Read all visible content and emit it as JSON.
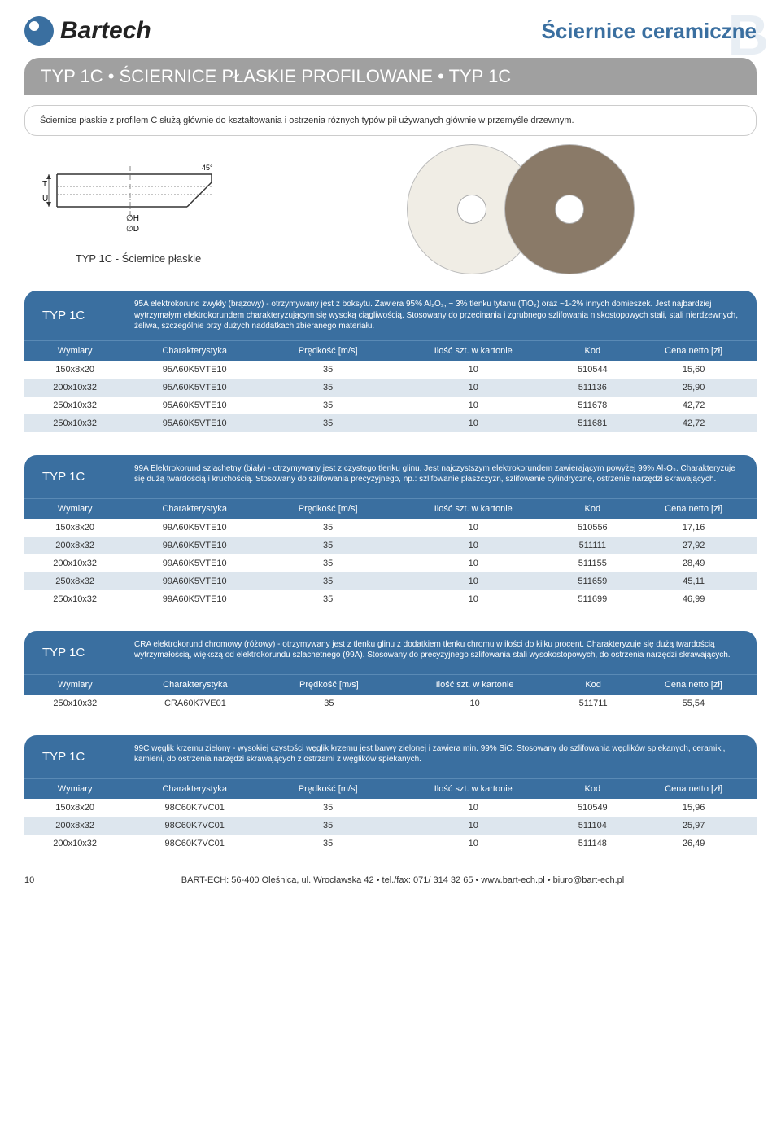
{
  "header": {
    "logo_text": "Bartech",
    "title": "Ściernice ceramiczne"
  },
  "title_bar": "TYP 1C • ŚCIERNICE PŁASKIE PROFILOWANE • TYP 1C",
  "intro": "Ściernice płaskie z profilem C służą głównie do kształtowania i ostrzenia różnych typów pił używanych głównie w przemyśle drzewnym.",
  "diagram": {
    "labels": {
      "T": "T",
      "U": "U",
      "H": "∅H",
      "D": "∅D",
      "angle": "45°"
    },
    "caption": "TYP 1C - Ściernice płaskie"
  },
  "columns": [
    "Wymiary",
    "Charakterystyka",
    "Prędkość [m/s]",
    "Ilość szt. w kartonie",
    "Kod",
    "Cena netto [zł]"
  ],
  "sections": [
    {
      "type": "TYP 1C",
      "desc": "95A elektrokorund zwykły (brązowy) - otrzymywany jest z boksytu. Zawiera 95% Al₂O₃, ~ 3% tlenku tytanu (TiO₂) oraz ~1-2% innych domieszek. Jest najbardziej wytrzymałym elektrokorundem charakteryzującym się wysoką ciągliwością. Stosowany do przecinania i zgrubnego szlifowania niskostopowych stali, stali nierdzewnych, żeliwa, szczególnie przy dużych naddatkach zbieranego materiału.",
      "rows": [
        [
          "150x8x20",
          "95A60K5VTE10",
          "35",
          "10",
          "510544",
          "15,60"
        ],
        [
          "200x10x32",
          "95A60K5VTE10",
          "35",
          "10",
          "511136",
          "25,90"
        ],
        [
          "250x10x32",
          "95A60K5VTE10",
          "35",
          "10",
          "511678",
          "42,72"
        ],
        [
          "250x10x32",
          "95A60K5VTE10",
          "35",
          "10",
          "511681",
          "42,72"
        ]
      ]
    },
    {
      "type": "TYP 1C",
      "desc": "99A Elektrokorund szlachetny (biały) - otrzymywany jest z czystego tlenku glinu. Jest najczystszym elektrokorundem zawierającym powyżej 99% Al₂O₃. Charakteryzuje się dużą twardością i kruchością. Stosowany do szlifowania precyzyjnego, np.: szlifowanie płaszczyzn, szlifowanie cylindryczne, ostrzenie narzędzi skrawających.",
      "rows": [
        [
          "150x8x20",
          "99A60K5VTE10",
          "35",
          "10",
          "510556",
          "17,16"
        ],
        [
          "200x8x32",
          "99A60K5VTE10",
          "35",
          "10",
          "511111",
          "27,92"
        ],
        [
          "200x10x32",
          "99A60K5VTE10",
          "35",
          "10",
          "511155",
          "28,49"
        ],
        [
          "250x8x32",
          "99A60K5VTE10",
          "35",
          "10",
          "511659",
          "45,11"
        ],
        [
          "250x10x32",
          "99A60K5VTE10",
          "35",
          "10",
          "511699",
          "46,99"
        ]
      ]
    },
    {
      "type": "TYP 1C",
      "desc": "CRA elektrokorund chromowy (różowy) - otrzymywany jest z tlenku glinu z dodatkiem tlenku chromu w ilości do kilku procent. Charakteryzuje się dużą twardością i wytrzymałością, większą od elektrokorundu szlachetnego (99A). Stosowany do precyzyjnego szlifowania stali wysokostopowych, do ostrzenia narzędzi skrawających.",
      "rows": [
        [
          "250x10x32",
          "CRA60K7VE01",
          "35",
          "10",
          "511711",
          "55,54"
        ]
      ]
    },
    {
      "type": "TYP 1C",
      "desc": "99C węglik krzemu zielony - wysokiej czystości węglik krzemu jest barwy zielonej i zawiera min. 99% SiC. Stosowany do szlifowania węglików spiekanych, ceramiki, kamieni, do ostrzenia narzędzi skrawających z ostrzami z węglików spiekanych.",
      "rows": [
        [
          "150x8x20",
          "98C60K7VC01",
          "35",
          "10",
          "510549",
          "15,96"
        ],
        [
          "200x8x32",
          "98C60K7VC01",
          "35",
          "10",
          "511104",
          "25,97"
        ],
        [
          "200x10x32",
          "98C60K7VC01",
          "35",
          "10",
          "511148",
          "26,49"
        ]
      ]
    }
  ],
  "footer": {
    "page": "10",
    "text": "BART-ECH: 56-400 Oleśnica, ul. Wrocławska 42 • tel./fax: 071/ 314 32 65 • www.bart-ech.pl • biuro@bart-ech.pl"
  },
  "colors": {
    "brand_blue": "#3a6fa0",
    "row_alt": "#dde6ee",
    "title_gray": "#a0a0a0"
  }
}
